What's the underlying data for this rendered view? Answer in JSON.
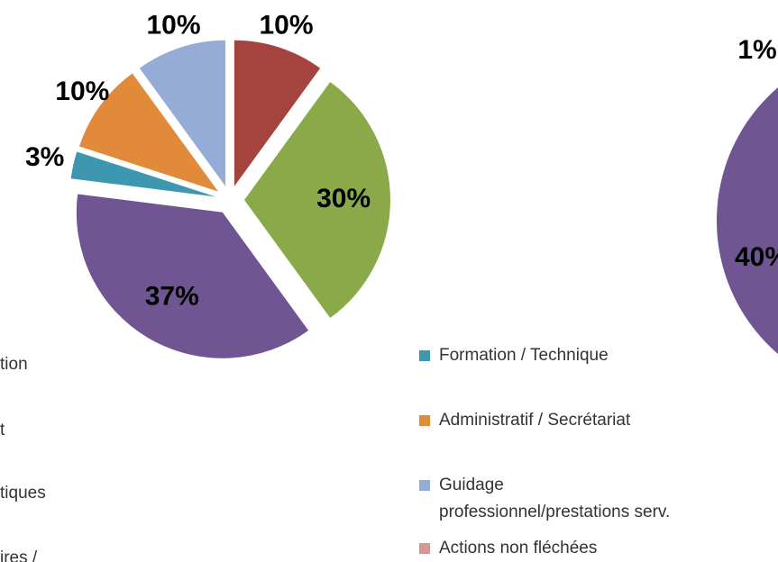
{
  "chart_data": [
    {
      "type": "pie",
      "values": [
        10,
        30,
        37,
        3,
        10,
        10
      ],
      "value_labels": [
        "10%",
        "30%",
        "37%",
        "3%",
        "10%",
        "10%"
      ],
      "colors": [
        "#a5443f",
        "#8aaa4a",
        "#6f5591",
        "#3e97b0",
        "#e08a3a",
        "#94acd6"
      ]
    },
    {
      "type": "pie",
      "values": [
        40,
        1
      ],
      "value_labels": [
        "40%",
        "1%"
      ],
      "colors": [
        "#6f5591",
        "#a5443f"
      ]
    }
  ],
  "legend": [
    {
      "label": "tion"
    },
    {
      "label": "t"
    },
    {
      "label": "tiques"
    },
    {
      "label": "ires /"
    },
    {
      "label": "Formation / Technique",
      "color": "#3e97b0"
    },
    {
      "label": "Administratif / Secrétariat",
      "color": "#e08a3a"
    },
    {
      "label": "Guidage professionnel/prestations serv.",
      "color": "#94acd6"
    },
    {
      "label": "Actions non fléchées",
      "color": "#d99694"
    }
  ]
}
